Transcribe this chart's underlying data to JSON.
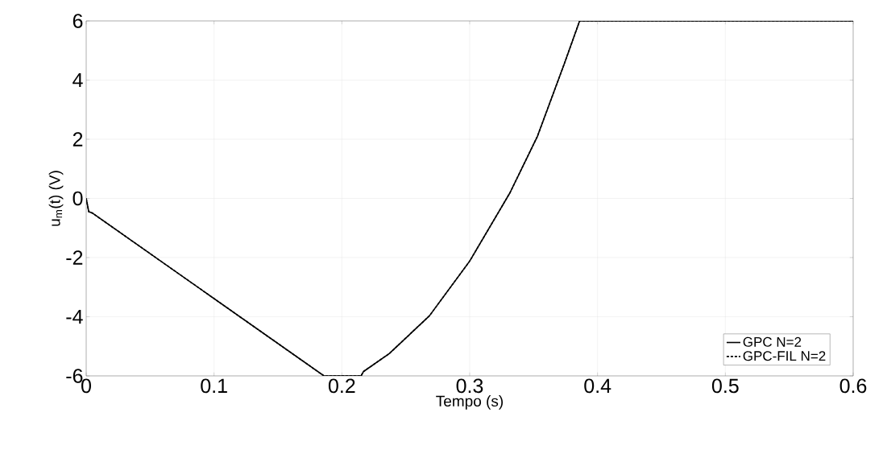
{
  "chart_data": {
    "type": "line",
    "xlabel": "Tempo (s)",
    "ylabel": "u$_{m}$(t) (V)",
    "xlim": [
      0,
      0.6
    ],
    "ylim": [
      -6,
      6
    ],
    "xticks": [
      0,
      0.1,
      0.2,
      0.3,
      0.4,
      0.5,
      0.6
    ],
    "yticks": [
      -6,
      -4,
      -2,
      0,
      2,
      4,
      6
    ],
    "grid": true,
    "legend": "bottom right",
    "marker": "none",
    "series": [
      {
        "name": "GPC N=2",
        "color": "#000000",
        "line_style": "solid",
        "x": [
          0,
          0.002,
          0.005,
          0.186,
          0.215,
          0.217,
          0.237,
          0.2685,
          0.3,
          0.3315,
          0.353,
          0.374,
          0.386,
          0.6
        ],
        "values": [
          0,
          -0.45,
          -0.5,
          -6,
          -6,
          -5.85,
          -5.25,
          -3.97,
          -2.12,
          0.19,
          2.1,
          4.55,
          6,
          6
        ]
      },
      {
        "name": "GPC-FIL N=2",
        "color": "#000000",
        "line_style": "dashed",
        "x": [
          0,
          0.002,
          0.005,
          0.186,
          0.215,
          0.217,
          0.237,
          0.2685,
          0.3,
          0.3315,
          0.353,
          0.374,
          0.386,
          0.6
        ],
        "values": [
          0,
          -0.45,
          -0.5,
          -6,
          -6,
          -5.85,
          -5.25,
          -3.97,
          -2.12,
          0.19,
          2.1,
          4.55,
          6,
          6
        ]
      }
    ]
  }
}
